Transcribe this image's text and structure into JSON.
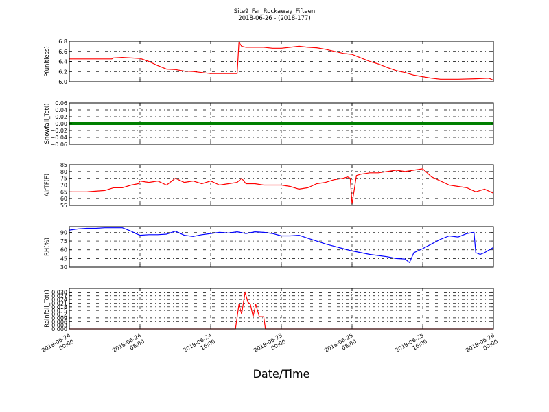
{
  "chart_data": {
    "type": "line",
    "title": "Site9_Far_Rockaway_Fifteen",
    "subtitle": "2018-06-26 - (2018-177)",
    "xlabel": "Date/Time",
    "x_tick_labels": [
      [
        "2018-06-24",
        "00:00"
      ],
      [
        "2018-06-24",
        "08:00"
      ],
      [
        "2018-06-24",
        "16:00"
      ],
      [
        "2018-06-25",
        "00:00"
      ],
      [
        "2018-06-25",
        "08:00"
      ],
      [
        "2018-06-25",
        "16:00"
      ],
      [
        "2018-06-26",
        "00:00"
      ]
    ],
    "x_range_hours": [
      0,
      48
    ],
    "grid": true,
    "panels": [
      {
        "ylabel": "P(unitless)",
        "ylim": [
          6.0,
          6.8
        ],
        "yticks": [
          "6.0",
          "6.2",
          "6.4",
          "6.6",
          "6.8"
        ],
        "color": "#ff0000",
        "series": [
          {
            "x": [
              0,
              2,
              4,
              4.8,
              5,
              6,
              8,
              9,
              10,
              11,
              12,
              13,
              14,
              15,
              16,
              18,
              19,
              19.2,
              19.5,
              20,
              22,
              23,
              24,
              25,
              26,
              27,
              28,
              29,
              30,
              31,
              32,
              33,
              34,
              35,
              36,
              37,
              38,
              39,
              40,
              41,
              42,
              44,
              46,
              47.5,
              48
            ],
            "y": [
              6.45,
              6.45,
              6.45,
              6.45,
              6.47,
              6.48,
              6.46,
              6.4,
              6.32,
              6.25,
              6.24,
              6.21,
              6.2,
              6.18,
              6.16,
              6.16,
              6.16,
              6.78,
              6.7,
              6.68,
              6.68,
              6.66,
              6.66,
              6.68,
              6.7,
              6.68,
              6.67,
              6.64,
              6.6,
              6.56,
              6.54,
              6.47,
              6.4,
              6.35,
              6.28,
              6.22,
              6.18,
              6.13,
              6.1,
              6.07,
              6.05,
              6.05,
              6.06,
              6.07,
              6.03
            ]
          }
        ]
      },
      {
        "ylabel": "Snowfall_Tot()",
        "ylim": [
          -0.06,
          0.06
        ],
        "yticks": [
          "−0.06",
          "−0.04",
          "−0.02",
          "0.00",
          "0.02",
          "0.04",
          "0.06"
        ],
        "color": "#008000",
        "series": [
          {
            "x": [
              0,
              48
            ],
            "y": [
              0,
              0
            ]
          }
        ]
      },
      {
        "ylabel": "AirTF(F)",
        "ylim": [
          55,
          85
        ],
        "yticks": [
          "55",
          "60",
          "65",
          "70",
          "75",
          "80",
          "85"
        ],
        "color": "#ff0000",
        "series": [
          {
            "x": [
              0,
              2,
              4,
              5,
              6,
              7,
              7.8,
              8,
              9,
              10,
              11,
              12,
              13,
              14,
              15,
              16,
              17,
              18,
              19,
              19.5,
              20,
              21,
              22,
              24,
              25,
              26,
              27,
              28,
              29,
              30,
              31,
              31.5,
              31.8,
              32,
              32.5,
              33,
              34,
              35,
              36,
              37,
              38,
              39,
              40,
              41,
              42,
              43,
              44,
              45,
              46,
              47,
              48
            ],
            "y": [
              65,
              65,
              66,
              68,
              68,
              70,
              71,
              73,
              72,
              73,
              70,
              75,
              72,
              73,
              71,
              73,
              70,
              71,
              72,
              75,
              71,
              71,
              70,
              70,
              69,
              67,
              68,
              71,
              72,
              74,
              75,
              76,
              75,
              56,
              77,
              78,
              79,
              79,
              80,
              81,
              80,
              81,
              82,
              76,
              73,
              70,
              69,
              68,
              65,
              67,
              64
            ]
          }
        ]
      },
      {
        "ylabel": "RH(%)",
        "ylim": [
          30,
          100
        ],
        "yticks": [
          "30",
          "45",
          "60",
          "75",
          "90"
        ],
        "color": "#0000ff",
        "series": [
          {
            "x": [
              0,
              1,
              2,
              3,
              4,
              5,
              6,
              7,
              7.5,
              8,
              9,
              10,
              11,
              12,
              13,
              14,
              15,
              16,
              17,
              18,
              19,
              20,
              21,
              22,
              23,
              24,
              25,
              26,
              27,
              28,
              29,
              30,
              31,
              32,
              33,
              34,
              35,
              36,
              37,
              38,
              38.5,
              39,
              40,
              41,
              42,
              43,
              44,
              45,
              45.8,
              46,
              46.5,
              47,
              48
            ],
            "y": [
              94,
              96,
              97,
              97,
              98,
              98,
              98,
              92,
              88,
              85,
              86,
              86,
              87,
              92,
              85,
              83,
              86,
              88,
              90,
              89,
              91,
              88,
              91,
              90,
              88,
              84,
              84,
              85,
              80,
              75,
              70,
              66,
              62,
              58,
              55,
              52,
              50,
              48,
              45,
              44,
              38,
              55,
              62,
              70,
              78,
              84,
              82,
              88,
              90,
              55,
              52,
              55,
              64
            ]
          }
        ]
      },
      {
        "ylabel": "Rainfall_Tot()",
        "ylim": [
          0.0,
          0.033
        ],
        "yticks": [
          "0.000",
          "0.003",
          "0.006",
          "0.009",
          "0.012",
          "0.015",
          "0.018",
          "0.021",
          "0.024",
          "0.027",
          "0.030"
        ],
        "color": "#ff0000",
        "series": [
          {
            "x": [
              0,
              18.8,
              19.2,
              19.5,
              19.9,
              20.2,
              20.5,
              20.8,
              21.1,
              21.5,
              22.0,
              22.2,
              48
            ],
            "y": [
              0,
              0,
              0.02,
              0.012,
              0.03,
              0.022,
              0.02,
              0.01,
              0.02,
              0.01,
              0.01,
              0.0,
              0
            ]
          }
        ]
      }
    ]
  }
}
